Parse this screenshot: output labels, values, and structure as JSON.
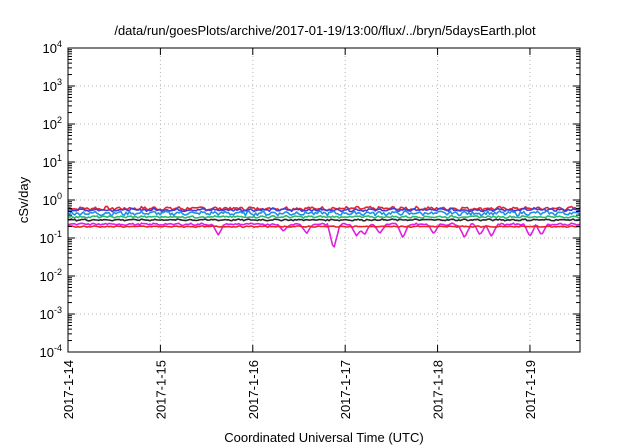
{
  "chart_data": {
    "type": "line",
    "title": "/data/run/goesPlots/archive/2017-01-19/13:00/flux/../bryn/5daysEarth.plot",
    "xlabel": "Coordinated Universal Time (UTC)",
    "ylabel": "cSv/day",
    "yscale": "log",
    "ylim": [
      0.0001,
      10000
    ],
    "xlim": [
      "2017-01-14",
      "2017-01-19 13:00"
    ],
    "x_ticks": [
      "2017-1-14",
      "2017-1-15",
      "2017-1-16",
      "2017-1-17",
      "2017-1-18",
      "2017-1-19"
    ],
    "y_ticks": [
      {
        "base": "10",
        "exp": "-4",
        "value": 0.0001
      },
      {
        "base": "10",
        "exp": "-3",
        "value": 0.001
      },
      {
        "base": "10",
        "exp": "-2",
        "value": 0.01
      },
      {
        "base": "10",
        "exp": "-1",
        "value": 0.1
      },
      {
        "base": "10",
        "exp": "0",
        "value": 1
      },
      {
        "base": "10",
        "exp": "1",
        "value": 10
      },
      {
        "base": "10",
        "exp": "2",
        "value": 100
      },
      {
        "base": "10",
        "exp": "3",
        "value": 1000
      },
      {
        "base": "10",
        "exp": "4",
        "value": 10000
      }
    ],
    "grid": true,
    "legend": "none",
    "series": [
      {
        "color": "#e8232a",
        "level": 0.6,
        "jitter": 0.09,
        "dips": false
      },
      {
        "color": "#3c3fd8",
        "level": 0.55,
        "jitter": 0.07,
        "dips": false
      },
      {
        "color": "#1e90e6",
        "level": 0.45,
        "jitter": 0.1,
        "dips": false
      },
      {
        "color": "#2bb873",
        "level": 0.36,
        "jitter": 0.05,
        "dips": false
      },
      {
        "color": "#2a2a2a",
        "level": 0.3,
        "jitter": 0.04,
        "dips": false
      },
      {
        "color": "#e11fe0",
        "level": 0.23,
        "jitter": 0.05,
        "dips": true
      },
      {
        "color": "#e8232a",
        "level": 0.2,
        "jitter": 0.03,
        "dips": false
      }
    ],
    "dip_events": [
      {
        "t": "2017-01-15 15:00",
        "value": 0.12
      },
      {
        "t": "2017-01-16 08:00",
        "value": 0.15
      },
      {
        "t": "2017-01-16 14:00",
        "value": 0.13
      },
      {
        "t": "2017-01-16 21:00",
        "value": 0.05
      },
      {
        "t": "2017-01-17 03:00",
        "value": 0.11
      },
      {
        "t": "2017-01-17 05:00",
        "value": 0.12
      },
      {
        "t": "2017-01-17 09:00",
        "value": 0.13
      },
      {
        "t": "2017-01-17 15:00",
        "value": 0.1
      },
      {
        "t": "2017-01-17 23:00",
        "value": 0.13
      },
      {
        "t": "2017-01-18 07:00",
        "value": 0.1
      },
      {
        "t": "2017-01-18 11:00",
        "value": 0.12
      },
      {
        "t": "2017-01-18 14:00",
        "value": 0.11
      },
      {
        "t": "2017-01-19 00:00",
        "value": 0.11
      },
      {
        "t": "2017-01-19 03:00",
        "value": 0.12
      }
    ]
  }
}
